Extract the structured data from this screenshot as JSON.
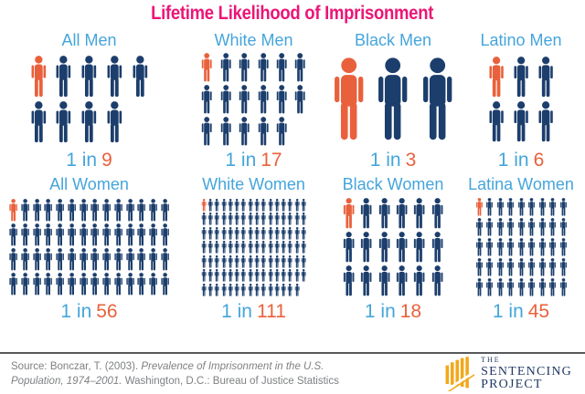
{
  "title": "Lifetime Likelihood of Imprisonment",
  "colors": {
    "title_pink": "#EC1576",
    "label_blue": "#45A5DB",
    "figure_navy": "#1C3E6C",
    "highlight_orange": "#E9613C",
    "logo_navy": "#203A63",
    "logo_gold": "#F2A81C"
  },
  "chart_data": {
    "type": "pictogram",
    "title": "Lifetime Likelihood of Imprisonment",
    "description": "One highlighted figure out of N total figures per demographic group",
    "legend_position": "none",
    "groups": [
      {
        "label": "All Men",
        "ratio_prefix": "1 in",
        "value": 9,
        "total_figures": 9,
        "highlighted_figures": 1,
        "rows": [
          5,
          4
        ]
      },
      {
        "label": "White Men",
        "ratio_prefix": "1 in",
        "value": 17,
        "total_figures": 17,
        "highlighted_figures": 1,
        "rows": [
          6,
          6,
          5
        ]
      },
      {
        "label": "Black Men",
        "ratio_prefix": "1 in",
        "value": 3,
        "total_figures": 3,
        "highlighted_figures": 1,
        "rows": [
          3
        ]
      },
      {
        "label": "Latino Men",
        "ratio_prefix": "1 in",
        "value": 6,
        "total_figures": 6,
        "highlighted_figures": 1,
        "rows": [
          3,
          3
        ]
      },
      {
        "label": "All Women",
        "ratio_prefix": "1 in",
        "value": 56,
        "total_figures": 56,
        "highlighted_figures": 1,
        "rows": [
          14,
          14,
          14,
          14
        ]
      },
      {
        "label": "White Women",
        "ratio_prefix": "1 in",
        "value": 111,
        "total_figures": 111,
        "highlighted_figures": 1,
        "rows": [
          16,
          16,
          16,
          16,
          16,
          16,
          15
        ]
      },
      {
        "label": "Black Women",
        "ratio_prefix": "1 in",
        "value": 18,
        "total_figures": 18,
        "highlighted_figures": 1,
        "rows": [
          6,
          6,
          6
        ]
      },
      {
        "label": "Latina Women",
        "ratio_prefix": "1 in",
        "value": 45,
        "total_figures": 45,
        "highlighted_figures": 1,
        "rows": [
          9,
          9,
          9,
          9,
          9
        ]
      }
    ]
  },
  "footer": {
    "source_prefix": "Source: Bonczar, T. (2003). ",
    "source_italic": "Prevalence of Imprisonment in the U.S. Population, 1974–2001.",
    "source_suffix": " Washington, D.C.: Bureau of Justice Statistics",
    "logo": {
      "line1": "THE",
      "line2": "SENTENCING",
      "line3": "PROJECT"
    }
  }
}
